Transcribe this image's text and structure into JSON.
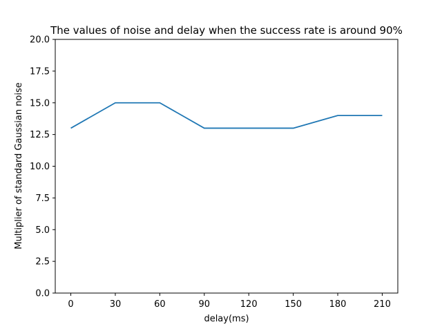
{
  "chart_data": {
    "type": "line",
    "title": "The values of noise and delay when the success rate is around 90%",
    "xlabel": "delay(ms)",
    "ylabel": "Multiplier of standard Gaussian noise",
    "x": [
      0,
      30,
      60,
      90,
      120,
      150,
      180,
      210
    ],
    "series": [
      {
        "values": [
          13,
          15,
          15,
          13,
          13,
          13,
          14,
          14
        ],
        "color": "#1f77b4"
      }
    ],
    "xticks": [
      0,
      30,
      60,
      90,
      120,
      150,
      180,
      210
    ],
    "xtick_labels": [
      "0",
      "30",
      "60",
      "90",
      "120",
      "150",
      "180",
      "210"
    ],
    "yticks": [
      0.0,
      2.5,
      5.0,
      7.5,
      10.0,
      12.5,
      15.0,
      17.5,
      20.0
    ],
    "ytick_labels": [
      "0.0",
      "2.5",
      "5.0",
      "7.5",
      "10.0",
      "12.5",
      "15.0",
      "17.5",
      "20.0"
    ],
    "xlim": [
      -10.5,
      220.5
    ],
    "ylim": [
      0,
      20
    ],
    "grid": false,
    "legend": "none"
  }
}
